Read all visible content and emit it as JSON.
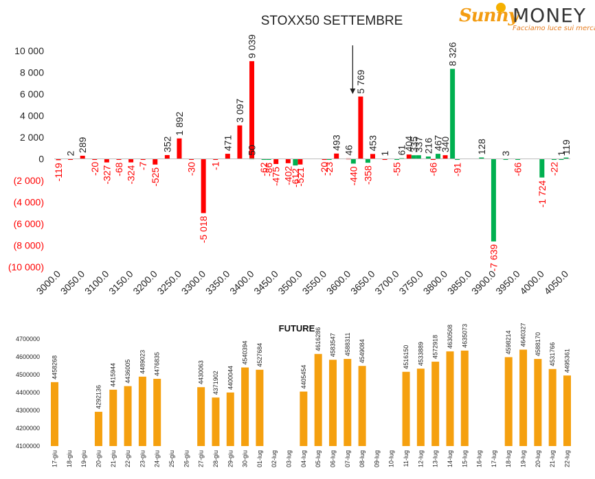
{
  "logo": {
    "brand_sunny": "Sunny",
    "brand_money": "MONEY",
    "tagline": "Facciamo luce sui mercati"
  },
  "colors": {
    "red": "#ff0000",
    "green": "#00b050",
    "orange": "#f5a00f",
    "axis_text": "#222222",
    "neg_text": "#ff0000"
  },
  "chart_data": [
    {
      "type": "bar",
      "title": "STOXX50 SETTEMBRE",
      "ylim": [
        -10000,
        10000
      ],
      "yticks": [
        10000,
        8000,
        6000,
        4000,
        2000,
        0,
        -2000,
        -4000,
        -6000,
        -8000,
        -10000
      ],
      "ytick_labels": [
        "10 000",
        "8 000",
        "6 000",
        "4 000",
        "2 000",
        "0",
        "(2 000)",
        "(4 000)",
        "(6 000)",
        "(8 000)",
        "(10 000)"
      ],
      "strikes": [
        3000,
        3025,
        3050,
        3075,
        3100,
        3125,
        3150,
        3175,
        3200,
        3225,
        3250,
        3275,
        3300,
        3325,
        3350,
        3375,
        3400,
        3425,
        3450,
        3475,
        3500,
        3525,
        3550,
        3575,
        3600,
        3625,
        3650,
        3675,
        3700,
        3725,
        3750,
        3775,
        3800,
        3825,
        3850,
        3875,
        3900,
        3925,
        3950,
        3975,
        4000,
        4025,
        4050
      ],
      "xtick_labels": [
        "3000.0",
        "3050.0",
        "3100.0",
        "3150.0",
        "3200.0",
        "3250.0",
        "3300.0",
        "3350.0",
        "3400.0",
        "3450.0",
        "3500.0",
        "3550.0",
        "3600.0",
        "3650.0",
        "3700.0",
        "3750.0",
        "3800.0",
        "3850.0",
        "3900.0",
        "3950.0",
        "4000.0",
        "4050.0"
      ],
      "series": [
        {
          "color": "#ff0000",
          "points": [
            {
              "strike": 3000,
              "value": -119,
              "label": "-119"
            },
            {
              "strike": 3025,
              "value": 2,
              "label": "2"
            },
            {
              "strike": 3050,
              "value": 289,
              "label": "289"
            },
            {
              "strike": 3075,
              "value": -20,
              "label": "-20"
            },
            {
              "strike": 3100,
              "value": -327,
              "label": "-327"
            },
            {
              "strike": 3125,
              "value": -68,
              "label": "-68"
            },
            {
              "strike": 3150,
              "value": -324,
              "label": "-324"
            },
            {
              "strike": 3175,
              "value": -7,
              "label": "-7"
            },
            {
              "strike": 3200,
              "value": -525,
              "label": "-525"
            },
            {
              "strike": 3225,
              "value": 352,
              "label": "352"
            },
            {
              "strike": 3250,
              "value": 1892,
              "label": "1 892"
            },
            {
              "strike": 3275,
              "value": -30,
              "label": "-30"
            },
            {
              "strike": 3300,
              "value": -5018,
              "label": "-5 018"
            },
            {
              "strike": 3325,
              "value": -1,
              "label": "-1"
            },
            {
              "strike": 3350,
              "value": 471,
              "label": "471"
            },
            {
              "strike": 3375,
              "value": 3097,
              "label": "3 097"
            },
            {
              "strike": 3400,
              "value": 9039,
              "label": "9 039"
            },
            {
              "strike": 3450,
              "value": -475,
              "label": "-475"
            },
            {
              "strike": 3475,
              "value": -402,
              "label": "-402"
            },
            {
              "strike": 3500,
              "value": -521,
              "label": "-521"
            },
            {
              "strike": 3550,
              "value": -20,
              "label": "-20"
            },
            {
              "strike": 3575,
              "value": 493,
              "label": "493"
            },
            {
              "strike": 3600,
              "value": 46,
              "label": "46"
            },
            {
              "strike": 3625,
              "value": 5769,
              "label": "5 769"
            },
            {
              "strike": 3650,
              "value": 453,
              "label": "453"
            },
            {
              "strike": 3675,
              "value": 1,
              "label": "1"
            },
            {
              "strike": 3725,
              "value": 404,
              "label": "404"
            },
            {
              "strike": 3775,
              "value": -66,
              "label": "-66"
            },
            {
              "strike": 3800,
              "value": 340,
              "label": "340"
            }
          ]
        },
        {
          "color": "#00b050",
          "points": [
            {
              "strike": 3400,
              "value": 50,
              "label": "50"
            },
            {
              "strike": 3425,
              "value": -62,
              "label": "-62"
            },
            {
              "strike": 3435,
              "value": -86,
              "label": "-86"
            },
            {
              "strike": 3490,
              "value": -612,
              "label": "-612"
            },
            {
              "strike": 3560,
              "value": -23,
              "label": "-23"
            },
            {
              "strike": 3610,
              "value": -440,
              "label": "-440"
            },
            {
              "strike": 3640,
              "value": -358,
              "label": "-358"
            },
            {
              "strike": 3700,
              "value": -55,
              "label": "-55"
            },
            {
              "strike": 3710,
              "value": 61,
              "label": "61"
            },
            {
              "strike": 3735,
              "value": 335,
              "label": "335"
            },
            {
              "strike": 3745,
              "value": 337,
              "label": "337"
            },
            {
              "strike": 3765,
              "value": 216,
              "label": "216"
            },
            {
              "strike": 3785,
              "value": 467,
              "label": "467"
            },
            {
              "strike": 3815,
              "value": 8326,
              "label": "8 326"
            },
            {
              "strike": 3825,
              "value": -91,
              "label": "-91"
            },
            {
              "strike": 3875,
              "value": 128,
              "label": "128"
            },
            {
              "strike": 3900,
              "value": -7639,
              "label": "-7 639"
            },
            {
              "strike": 3925,
              "value": 3,
              "label": "3"
            },
            {
              "strike": 3950,
              "value": -66,
              "label": "-66"
            },
            {
              "strike": 4000,
              "value": -1724,
              "label": "-1 724"
            },
            {
              "strike": 4025,
              "value": -22,
              "label": "-22"
            },
            {
              "strike": 4040,
              "value": 1,
              "label": "1"
            },
            {
              "strike": 4050,
              "value": 119,
              "label": "119"
            }
          ]
        }
      ],
      "annotation_arrow": {
        "strike": 3610,
        "from_value": 10500,
        "to_value": 6000
      }
    },
    {
      "type": "bar",
      "title": "FUTURE",
      "ylim": [
        4100000,
        4700000
      ],
      "yticks": [
        4700000,
        4600000,
        4500000,
        4400000,
        4300000,
        4200000,
        4100000
      ],
      "ytick_labels": [
        "4700000",
        "4600000",
        "4500000",
        "4400000",
        "4300000",
        "4200000",
        "4100000"
      ],
      "color": "#f5a00f",
      "categories": [
        "17-giu",
        "18-giu",
        "19-giu",
        "20-giu",
        "21-giu",
        "22-giu",
        "23-giu",
        "24-giu",
        "25-giu",
        "26-giu",
        "27-giu",
        "28-giu",
        "29-giu",
        "30-giu",
        "01-lug",
        "02-lug",
        "03-lug",
        "04-lug",
        "05-lug",
        "06-lug",
        "07-lug",
        "08-lug",
        "09-lug",
        "10-lug",
        "11-lug",
        "12-lug",
        "13-lug",
        "14-lug",
        "15-lug",
        "16-lug",
        "17-lug",
        "18-lug",
        "19-lug",
        "20-lug",
        "21-lug",
        "22-lug"
      ],
      "values": [
        4458268,
        null,
        null,
        4292136,
        4415944,
        4436005,
        4489023,
        4476835,
        null,
        null,
        4430063,
        4371902,
        4400044,
        4540394,
        4527684,
        null,
        null,
        4405454,
        4616286,
        4583547,
        4588311,
        4549084,
        null,
        null,
        4516150,
        4533889,
        4572918,
        4630508,
        4635073,
        null,
        null,
        4598214,
        4640327,
        4588170,
        4531766,
        4495361
      ],
      "labels": [
        "4458268",
        "",
        "",
        "4292136",
        "4415944",
        "4436005",
        "4489023",
        "4476835",
        "",
        "",
        "4430063",
        "4371902",
        "4400044",
        "4540394",
        "4527684",
        "",
        "",
        "4405454",
        "4616286",
        "4583547",
        "4588311",
        "4549084",
        "",
        "",
        "4516150",
        "4533889",
        "4572918",
        "4630508",
        "4635073",
        "",
        "",
        "4598214",
        "4640327",
        "4588170",
        "4531766",
        "4495361"
      ]
    }
  ]
}
